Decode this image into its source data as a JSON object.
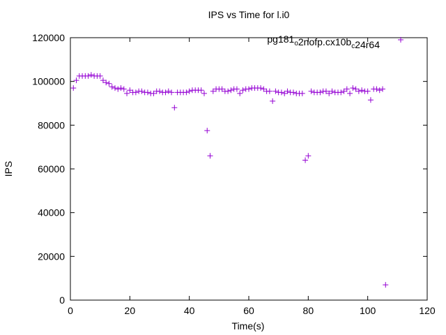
{
  "chart_data": {
    "type": "scatter",
    "title": "IPS vs Time for l.i0",
    "xlabel": "Time(s)",
    "ylabel": "IPS",
    "xlim": [
      0,
      120
    ],
    "ylim": [
      0,
      120000
    ],
    "xticks": [
      0,
      20,
      40,
      60,
      80,
      100,
      120
    ],
    "yticks": [
      0,
      20000,
      40000,
      60000,
      80000,
      100000,
      120000
    ],
    "grid": false,
    "legend_placement": "top-right",
    "series": [
      {
        "name": "pg181_o2nofp.cx10b_c24r64",
        "color": "#9400d3",
        "x": [
          1,
          2,
          3,
          4,
          5,
          6,
          7,
          8,
          9,
          10,
          11,
          12,
          13,
          14,
          15,
          16,
          17,
          18,
          19,
          20,
          21,
          22,
          23,
          24,
          25,
          26,
          27,
          28,
          29,
          30,
          31,
          32,
          33,
          34,
          35,
          36,
          37,
          38,
          39,
          40,
          41,
          42,
          43,
          44,
          45,
          46,
          47,
          48,
          49,
          50,
          51,
          52,
          53,
          54,
          55,
          56,
          57,
          58,
          59,
          60,
          61,
          62,
          63,
          64,
          65,
          66,
          67,
          68,
          69,
          70,
          71,
          72,
          73,
          74,
          75,
          76,
          77,
          78,
          79,
          80,
          81,
          82,
          83,
          84,
          85,
          86,
          87,
          88,
          89,
          90,
          91,
          92,
          93,
          94,
          95,
          96,
          97,
          98,
          99,
          100,
          101,
          102,
          103,
          104,
          105,
          106
        ],
        "y": [
          97000,
          100500,
          102500,
          102500,
          102500,
          102500,
          103000,
          102500,
          102500,
          102500,
          100500,
          99500,
          99000,
          97500,
          97000,
          96500,
          97000,
          96500,
          94500,
          96000,
          95000,
          95000,
          95500,
          95500,
          95000,
          95000,
          94500,
          94500,
          95500,
          95500,
          95000,
          95000,
          95500,
          95000,
          88000,
          95000,
          95000,
          95000,
          95000,
          95500,
          96000,
          96000,
          96000,
          96000,
          94500,
          77500,
          66000,
          95500,
          96500,
          96500,
          96500,
          95500,
          95500,
          96000,
          96500,
          96500,
          94500,
          96000,
          96500,
          96500,
          97000,
          97000,
          97000,
          97000,
          96500,
          95500,
          95500,
          91000,
          95500,
          95000,
          95000,
          94500,
          95500,
          95000,
          95000,
          94500,
          94500,
          94500,
          64000,
          66000,
          95500,
          95000,
          95000,
          95000,
          95500,
          95500,
          94500,
          95500,
          95000,
          95000,
          95000,
          95500,
          96500,
          94500,
          97000,
          96500,
          95500,
          96000,
          95500,
          95500,
          91500,
          96500,
          96500,
          96000,
          96500,
          7000
        ]
      }
    ]
  }
}
